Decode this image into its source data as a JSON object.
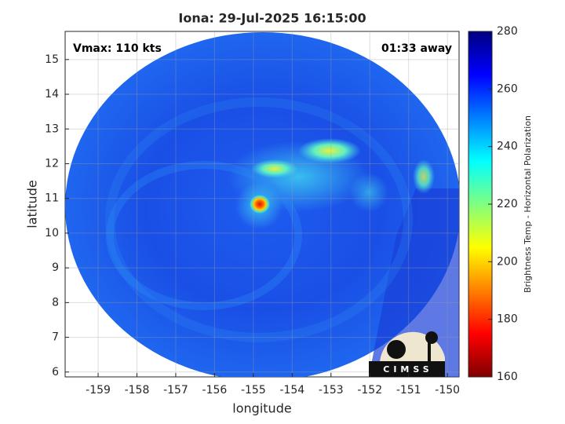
{
  "chart_data": {
    "type": "image",
    "title": "Iona: 29-Jul-2025 16:15:00",
    "annotations": [
      "Vmax: 110 kts",
      "01:33 away"
    ],
    "x_label": "longitude",
    "y_label": "latitude",
    "xlim": [
      -159.85,
      -149.7
    ],
    "ylim": [
      5.86,
      15.81
    ],
    "xticks": [
      -159,
      -158,
      -157,
      -156,
      -155,
      -154,
      -153,
      -152,
      -151,
      -150
    ],
    "yticks": [
      6,
      7,
      8,
      9,
      10,
      11,
      12,
      13,
      14,
      15
    ],
    "grid": true,
    "colorbar": {
      "label": "Brightness Temp - Horizontal Polarization",
      "lim": [
        160,
        280
      ],
      "ticks": [
        160,
        180,
        200,
        220,
        240,
        260,
        280
      ],
      "colormap": "jet"
    },
    "logo": "CIMSS"
  }
}
